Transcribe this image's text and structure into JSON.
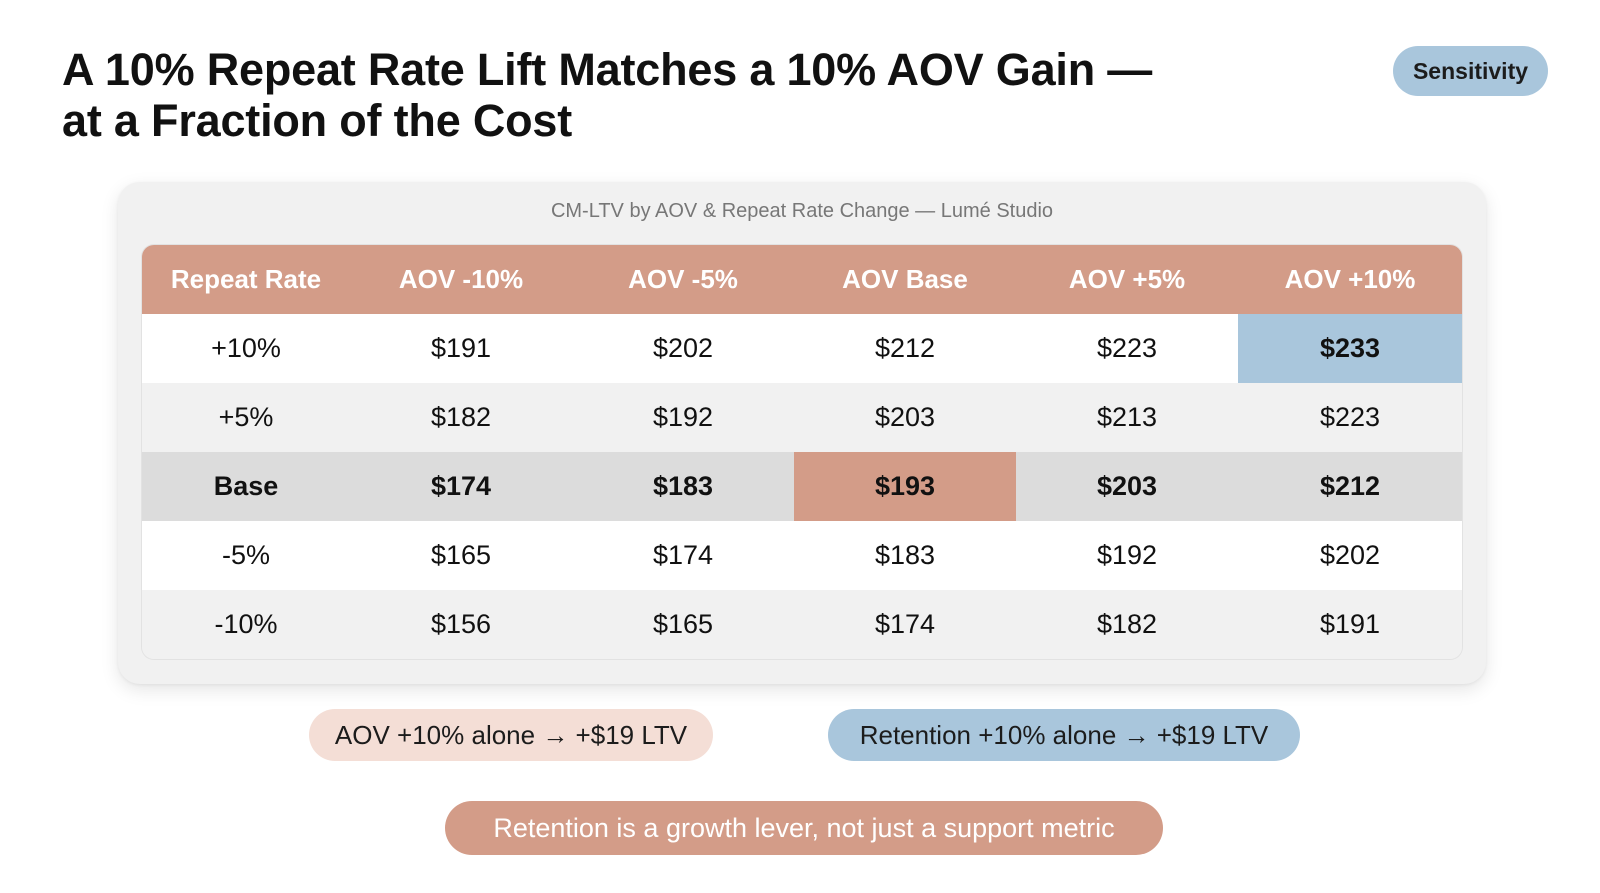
{
  "header": {
    "title_line1": "A 10% Repeat Rate Lift Matches a 10% AOV Gain —",
    "title_line2": "at a Fraction of the Cost",
    "tag": "Sensitivity"
  },
  "colors": {
    "accent_terracotta": "#d39c88",
    "accent_blue": "#a9c6dc",
    "accent_blush": "#f4ded6"
  },
  "chart_data": {
    "type": "table",
    "title": "CM-LTV by AOV & Repeat Rate Change — Lumé Studio",
    "row_header_label": "Repeat Rate",
    "columns": [
      "AOV -10%",
      "AOV -5%",
      "AOV Base",
      "AOV +5%",
      "AOV +10%"
    ],
    "rows": [
      {
        "label": "+10%",
        "values": [
          "$191",
          "$202",
          "$212",
          "$223",
          "$233"
        ]
      },
      {
        "label": "+5%",
        "values": [
          "$182",
          "$192",
          "$203",
          "$213",
          "$223"
        ]
      },
      {
        "label": "Base",
        "values": [
          "$174",
          "$183",
          "$193",
          "$203",
          "$212"
        ]
      },
      {
        "label": "-5%",
        "values": [
          "$165",
          "$174",
          "$183",
          "$192",
          "$202"
        ]
      },
      {
        "label": "-10%",
        "values": [
          "$156",
          "$165",
          "$174",
          "$182",
          "$191"
        ]
      }
    ],
    "highlights": {
      "base_case": {
        "row": "Base",
        "column": "AOV Base",
        "color": "#d39c88"
      },
      "best_case": {
        "row": "+10%",
        "column": "AOV +10%",
        "color": "#a9c6dc"
      }
    }
  },
  "callouts": {
    "aov": "AOV +10% alone → +$19 LTV",
    "retention": "Retention +10% alone → +$19 LTV",
    "conclusion": "Retention is a growth lever, not just a support metric"
  }
}
